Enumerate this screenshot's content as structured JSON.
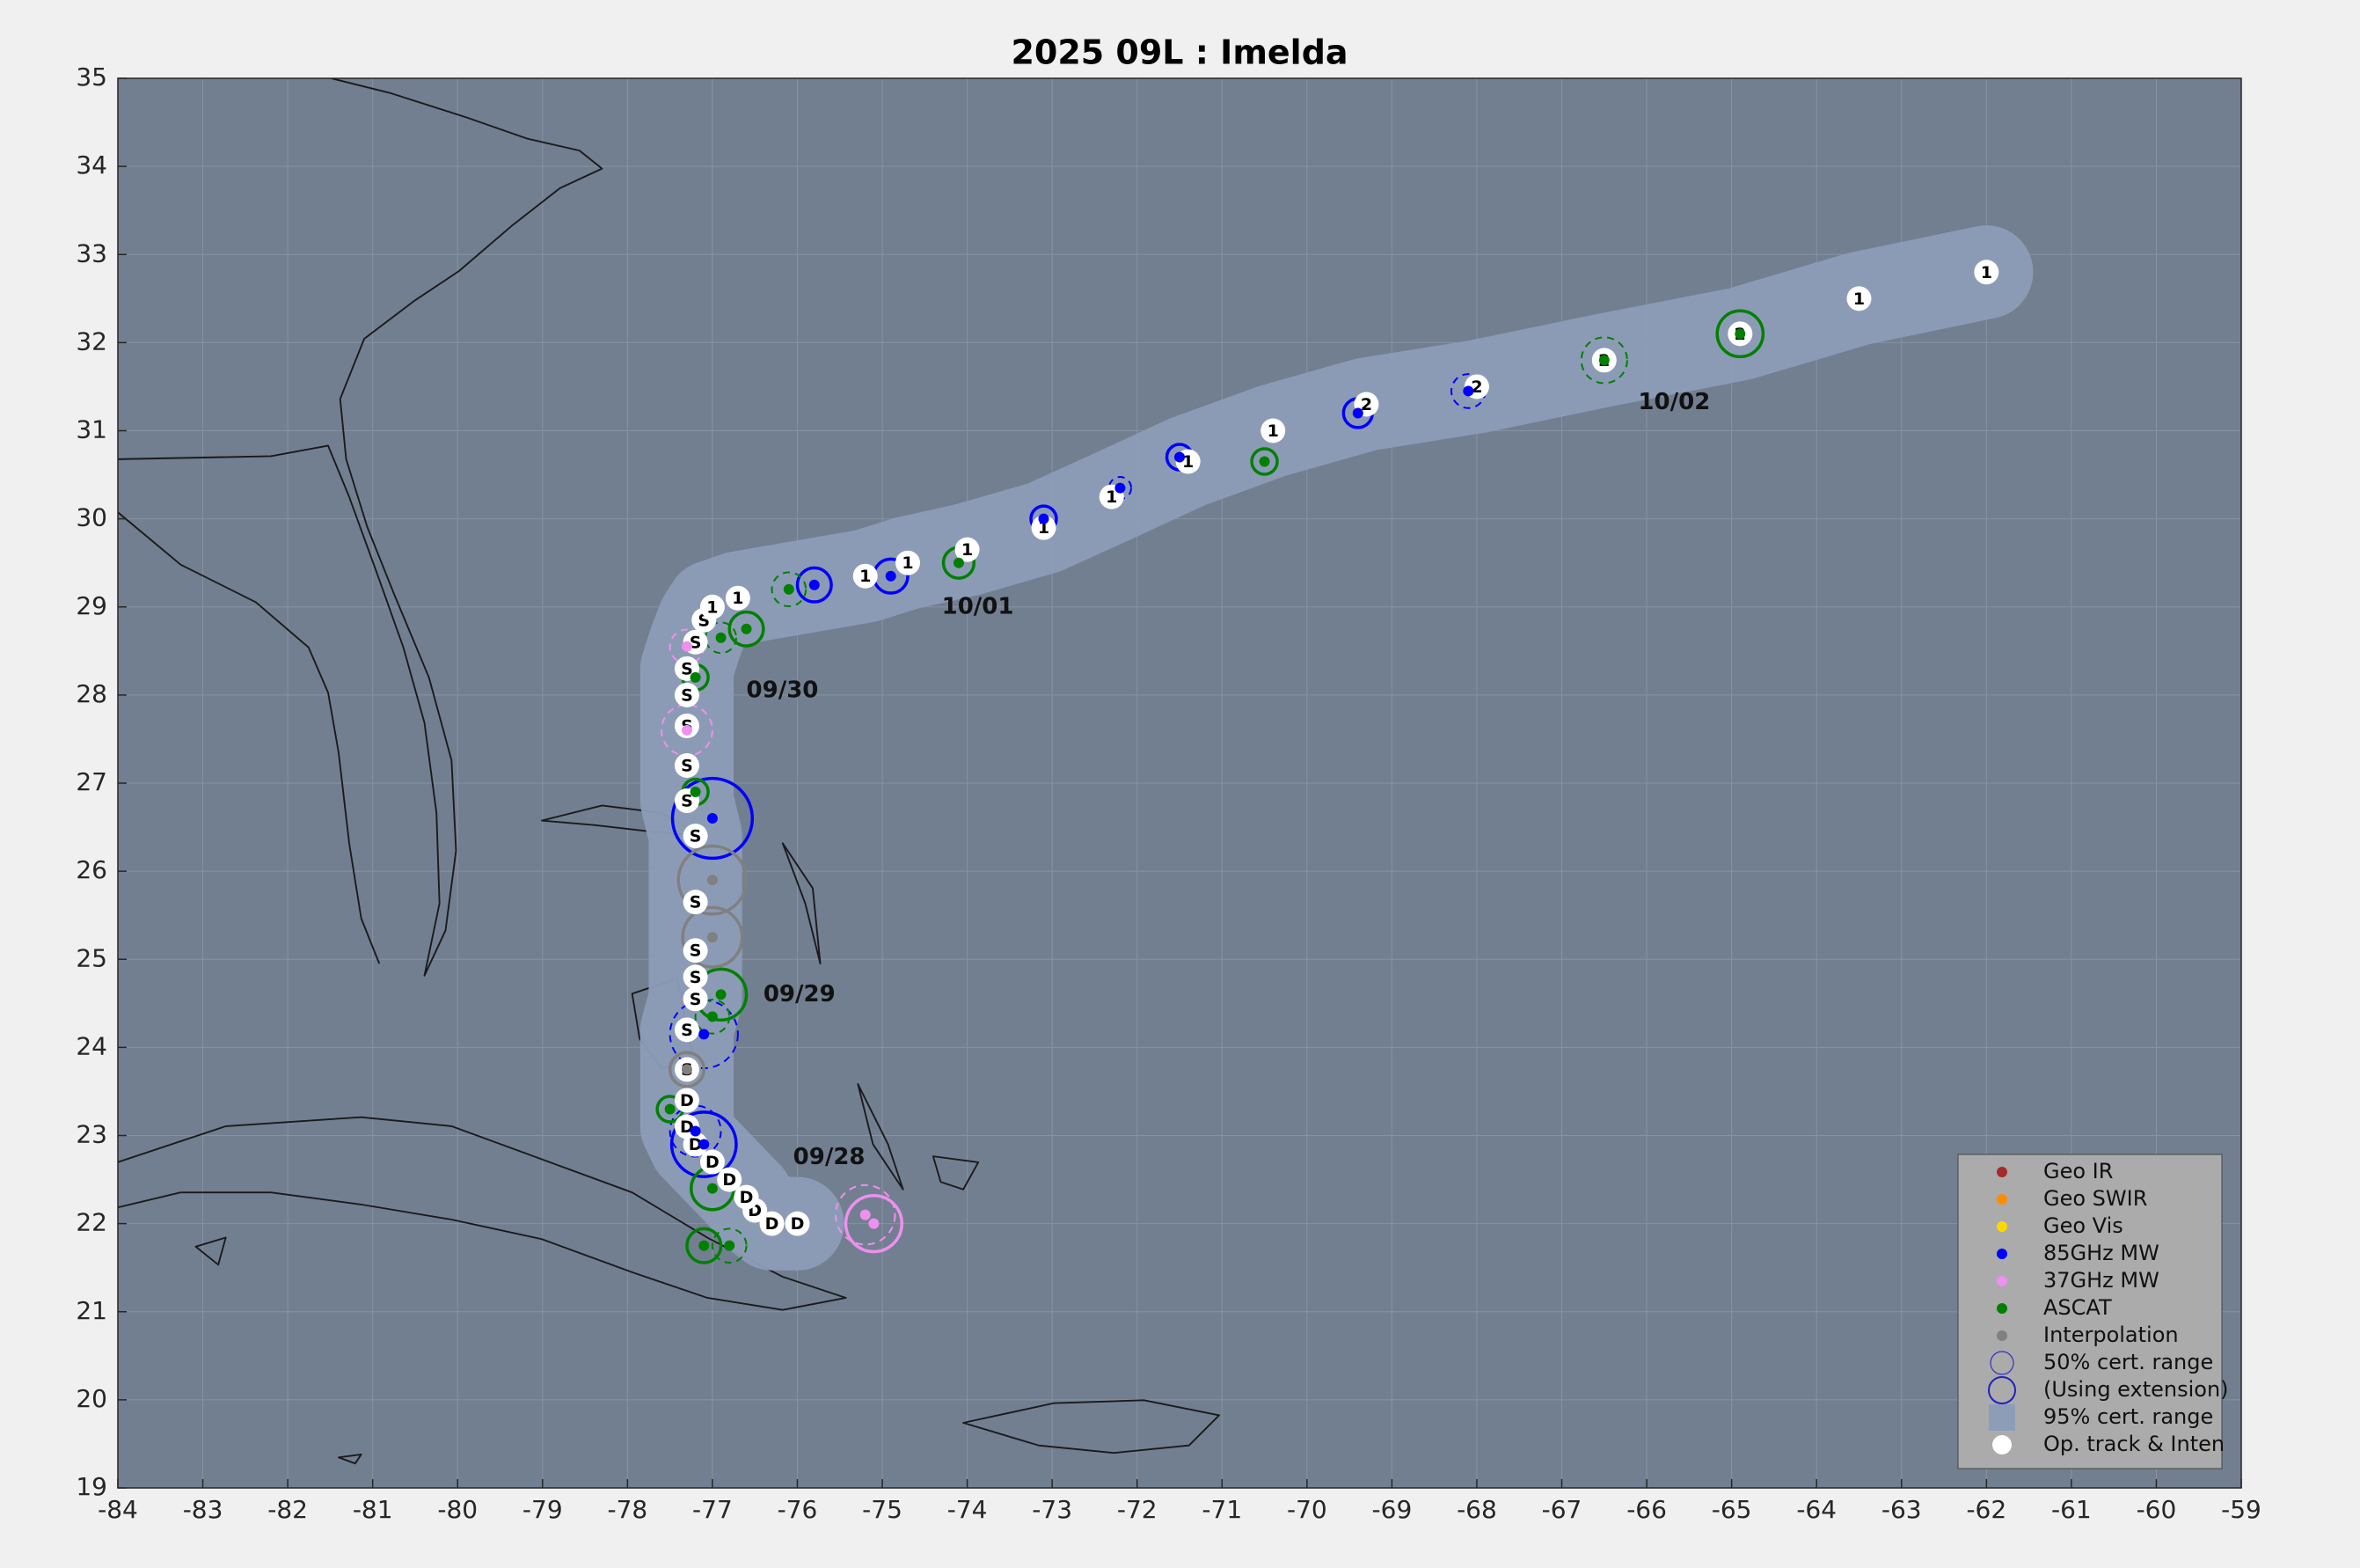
{
  "chart_data": {
    "type": "track",
    "title": "2025  09L :  Imelda",
    "xlim": [
      -84,
      -59
    ],
    "ylim": [
      19,
      35
    ],
    "xticks": [
      -84,
      -83,
      -82,
      -81,
      -80,
      -79,
      -78,
      -77,
      -76,
      -75,
      -74,
      -73,
      -72,
      -71,
      -70,
      -69,
      -68,
      -67,
      -66,
      -65,
      -64,
      -63,
      -62,
      -61,
      -60,
      -59
    ],
    "yticks": [
      19,
      20,
      21,
      22,
      23,
      24,
      25,
      26,
      27,
      28,
      29,
      30,
      31,
      32,
      33,
      34,
      35
    ],
    "grid": true,
    "background_color": "#727f91",
    "cone_color": "#8d9db7",
    "track": {
      "name": "Op. track & Inten",
      "color": "#ffffff",
      "lon": [
        -76.0,
        -76.3,
        -76.5,
        -76.6,
        -76.8,
        -77.0,
        -77.2,
        -77.3,
        -77.3,
        -77.3,
        -77.3,
        -77.2,
        -77.2,
        -77.2,
        -77.2,
        -77.2,
        -77.3,
        -77.3,
        -77.3,
        -77.3,
        -77.3,
        -77.2,
        -77.1,
        -77.0,
        -76.7,
        -75.2,
        -74.7,
        -74.0,
        -73.1,
        -72.3,
        -71.4,
        -70.4,
        -69.3,
        -68.0,
        -66.5,
        -64.9,
        -63.5,
        -62.0
      ],
      "lat": [
        22.0,
        22.0,
        22.15,
        22.3,
        22.5,
        22.7,
        22.9,
        23.1,
        23.4,
        23.75,
        24.2,
        24.55,
        24.8,
        25.1,
        25.65,
        26.4,
        26.8,
        27.2,
        27.65,
        28.0,
        28.3,
        28.6,
        28.85,
        29.0,
        29.1,
        29.35,
        29.5,
        29.65,
        29.9,
        30.25,
        30.65,
        31.0,
        31.3,
        31.5,
        31.8,
        32.1,
        32.5,
        32.8
      ],
      "labels": [
        "D",
        "D",
        "D",
        "D",
        "D",
        "D",
        "D",
        "D",
        "D",
        "S",
        "S",
        "S",
        "S",
        "S",
        "S",
        "S",
        "S",
        "S",
        "S",
        "S",
        "S",
        "S",
        "S",
        "1",
        "1",
        "1",
        "1",
        "1",
        "1",
        "1",
        "1",
        "1",
        "2",
        "2",
        "2",
        "2",
        "1",
        "1"
      ]
    },
    "series": [
      {
        "name": "Geo IR",
        "color": "#a52a2a",
        "lon": [],
        "lat": [],
        "radius": [],
        "dashed": []
      },
      {
        "name": "Geo SWIR",
        "color": "#ff8c00",
        "lon": [],
        "lat": [],
        "radius": [],
        "dashed": []
      },
      {
        "name": "Geo Vis",
        "color": "#ffd700",
        "lon": [],
        "lat": [],
        "radius": [],
        "dashed": []
      },
      {
        "name": "85GHz MW",
        "color": "#0000ff",
        "lon": [
          -77.1,
          -77.2,
          -77.1,
          -77.0,
          -75.8,
          -74.9,
          -73.1,
          -72.2,
          -71.5,
          -69.4,
          -68.1
        ],
        "lat": [
          22.9,
          23.05,
          24.15,
          26.6,
          29.25,
          29.35,
          30.0,
          30.35,
          30.7,
          31.2,
          31.45
        ],
        "radius": [
          0.38,
          0.3,
          0.4,
          0.47,
          0.2,
          0.2,
          0.15,
          0.13,
          0.15,
          0.17,
          0.2
        ],
        "dashed": [
          false,
          true,
          true,
          false,
          false,
          false,
          false,
          true,
          false,
          false,
          true
        ]
      },
      {
        "name": "37GHz MW",
        "color": "#ee90ee",
        "lon": [
          -75.2,
          -75.1,
          -77.3,
          -77.3
        ],
        "lat": [
          22.1,
          22.0,
          27.6,
          28.55
        ],
        "radius": [
          0.35,
          0.33,
          0.3,
          0.2
        ],
        "dashed": [
          true,
          false,
          true,
          true
        ]
      },
      {
        "name": "ASCAT",
        "color": "#008000",
        "lon": [
          -76.8,
          -77.1,
          -77.0,
          -77.5,
          -77.0,
          -76.9,
          -77.2,
          -77.2,
          -76.9,
          -76.6,
          -76.1,
          -74.1,
          -70.5,
          -66.5,
          -64.9
        ],
        "lat": [
          21.75,
          21.75,
          22.4,
          23.3,
          24.35,
          24.6,
          26.9,
          28.2,
          28.65,
          28.75,
          29.2,
          29.5,
          30.65,
          31.8,
          32.1
        ],
        "radius": [
          0.2,
          0.2,
          0.25,
          0.15,
          0.2,
          0.3,
          0.15,
          0.15,
          0.18,
          0.2,
          0.2,
          0.18,
          0.15,
          0.27,
          0.27
        ],
        "dashed": [
          true,
          false,
          false,
          false,
          true,
          false,
          false,
          false,
          true,
          false,
          true,
          false,
          false,
          true,
          false
        ]
      },
      {
        "name": "Interpolation",
        "color": "#808080",
        "lon": [
          -77.0,
          -77.0,
          -77.3
        ],
        "lat": [
          25.9,
          25.25,
          23.75
        ],
        "radius": [
          0.4,
          0.35,
          0.2
        ],
        "dashed": [
          false,
          false,
          false
        ]
      }
    ],
    "legend_extra": [
      "50% cert. range",
      "(Using extension)",
      "95% cert. range"
    ],
    "annotations": [
      {
        "text": "09/28",
        "lon": -76.05,
        "lat": 22.75
      },
      {
        "text": "09/29",
        "lon": -76.4,
        "lat": 24.6
      },
      {
        "text": "09/30",
        "lon": -76.6,
        "lat": 28.05
      },
      {
        "text": "10/01",
        "lon": -74.3,
        "lat": 29.0
      },
      {
        "text": "10/02",
        "lon": -66.1,
        "lat": 31.32
      }
    ],
    "legend_position": "lower right"
  }
}
